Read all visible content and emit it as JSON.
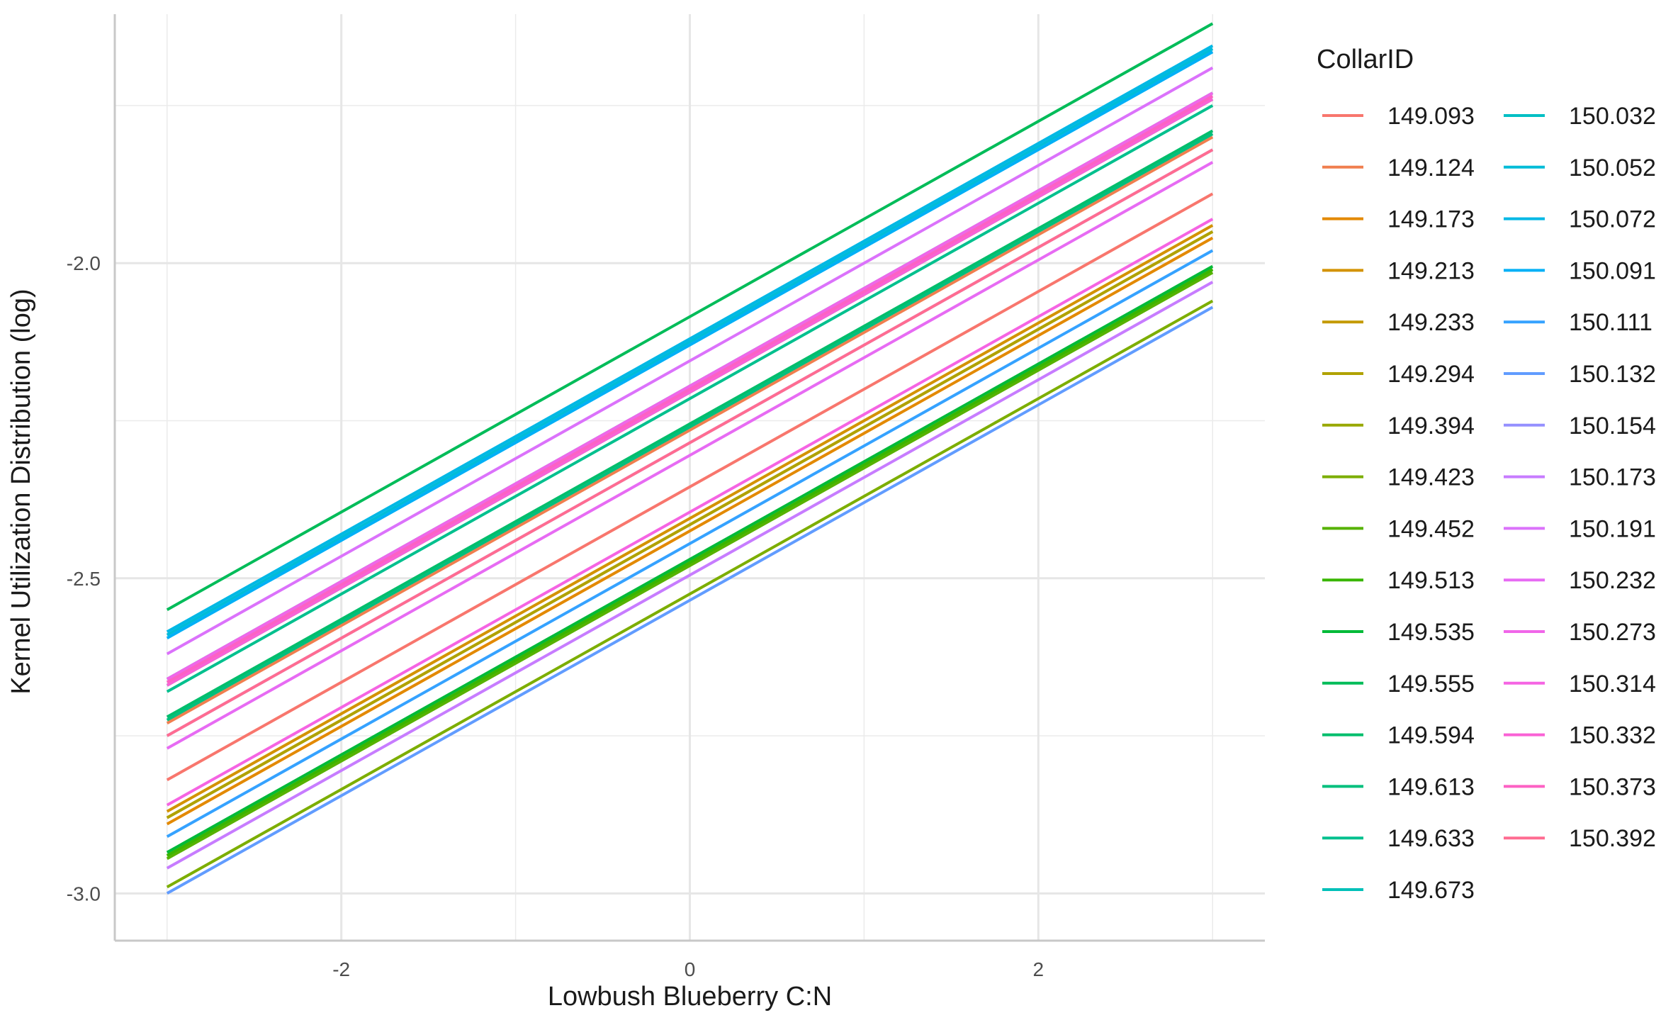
{
  "chart_data": {
    "type": "line",
    "title": "",
    "xlabel": "Lowbush Blueberry C:N",
    "ylabel": "Kernel Utilization Distribution (log)",
    "xlim": [
      -3.3,
      3.3
    ],
    "ylim": [
      -3.075,
      -1.605
    ],
    "x_ticks": [
      -2,
      0,
      2
    ],
    "x_tick_labels": [
      "-2",
      "0",
      "2"
    ],
    "y_ticks": [
      -3.0,
      -2.5,
      -2.0
    ],
    "y_tick_labels": [
      "-3.0",
      "-2.5",
      "-2.0"
    ],
    "grid": true,
    "legend_title": "CollarID",
    "legend_position": "right",
    "x": [
      -3,
      3
    ],
    "series": [
      {
        "name": "149.093",
        "color": "#F8766D",
        "values": [
          -2.82,
          -1.89
        ]
      },
      {
        "name": "149.124",
        "color": "#F07F4F",
        "values": [
          -2.73,
          -1.8
        ]
      },
      {
        "name": "149.173",
        "color": "#E38900",
        "values": [
          -2.89,
          -1.96
        ]
      },
      {
        "name": "149.213",
        "color": "#D39200",
        "values": [
          -2.87,
          -1.94
        ]
      },
      {
        "name": "149.233",
        "color": "#C49A00",
        "values": [
          -2.88,
          -1.95
        ]
      },
      {
        "name": "149.294",
        "color": "#B0A200",
        "values": [
          -2.88,
          -1.95
        ]
      },
      {
        "name": "149.394",
        "color": "#99A800",
        "values": [
          -2.94,
          -2.01
        ]
      },
      {
        "name": "149.423",
        "color": "#7CAE00",
        "values": [
          -2.99,
          -2.06
        ]
      },
      {
        "name": "149.452",
        "color": "#56B200",
        "values": [
          -2.945,
          -2.015
        ]
      },
      {
        "name": "149.513",
        "color": "#39B600",
        "values": [
          -2.94,
          -2.01
        ]
      },
      {
        "name": "149.535",
        "color": "#00BA38",
        "values": [
          -2.935,
          -2.005
        ]
      },
      {
        "name": "149.555",
        "color": "#00BC59",
        "values": [
          -2.55,
          -1.62
        ]
      },
      {
        "name": "149.594",
        "color": "#00BE6C",
        "values": [
          -2.72,
          -1.79
        ]
      },
      {
        "name": "149.613",
        "color": "#00BF7D",
        "values": [
          -2.725,
          -1.795
        ]
      },
      {
        "name": "149.633",
        "color": "#00C08E",
        "values": [
          -2.68,
          -1.75
        ]
      },
      {
        "name": "149.673",
        "color": "#00C0B8",
        "values": [
          -2.67,
          -1.74
        ]
      },
      {
        "name": "150.032",
        "color": "#00BFC4",
        "values": [
          -2.66,
          -1.73
        ]
      },
      {
        "name": "150.052",
        "color": "#00BCD8",
        "values": [
          -2.59,
          -1.66
        ]
      },
      {
        "name": "150.072",
        "color": "#00B8E5",
        "values": [
          -2.585,
          -1.655
        ]
      },
      {
        "name": "150.091",
        "color": "#00B0F6",
        "values": [
          -2.595,
          -1.665
        ]
      },
      {
        "name": "150.111",
        "color": "#35A2FF",
        "values": [
          -2.91,
          -1.98
        ]
      },
      {
        "name": "150.132",
        "color": "#619CFF",
        "values": [
          -3.0,
          -2.07
        ]
      },
      {
        "name": "150.154",
        "color": "#9590FF",
        "values": [
          -2.75,
          -1.82
        ]
      },
      {
        "name": "150.173",
        "color": "#C77CFF",
        "values": [
          -2.96,
          -2.03
        ]
      },
      {
        "name": "150.191",
        "color": "#DB72FB",
        "values": [
          -2.62,
          -1.69
        ]
      },
      {
        "name": "150.232",
        "color": "#E76BF3",
        "values": [
          -2.77,
          -1.84
        ]
      },
      {
        "name": "150.273",
        "color": "#F066E9",
        "values": [
          -2.66,
          -1.73
        ]
      },
      {
        "name": "150.314",
        "color": "#F564E3",
        "values": [
          -2.86,
          -1.93
        ]
      },
      {
        "name": "150.332",
        "color": "#FA62D5",
        "values": [
          -2.67,
          -1.74
        ]
      },
      {
        "name": "150.373",
        "color": "#FD61C4",
        "values": [
          -2.665,
          -1.735
        ]
      },
      {
        "name": "150.392",
        "color": "#FF6C91",
        "values": [
          -2.75,
          -1.82
        ]
      }
    ]
  }
}
